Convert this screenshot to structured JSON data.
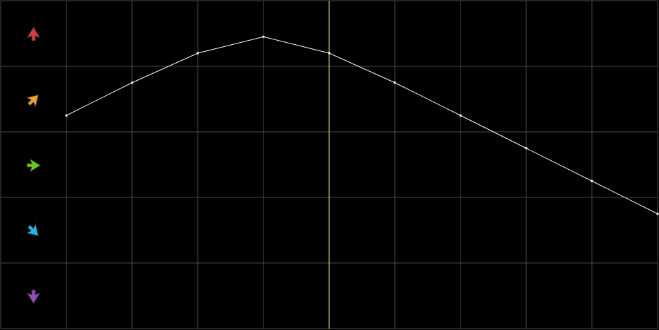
{
  "chart_data": {
    "type": "line",
    "title": "",
    "xlabel": "",
    "ylabel": "",
    "x": [
      1,
      2,
      3,
      4,
      5,
      6,
      7,
      8,
      9,
      10
    ],
    "series": [
      {
        "values": [
          3.25,
          3.75,
          4.2,
          4.45,
          4.2,
          3.75,
          3.25,
          2.75,
          2.25,
          1.75
        ],
        "color": "#ffffff"
      }
    ],
    "xlim": [
      0,
      10
    ],
    "ylim": [
      0,
      5
    ],
    "grid": true,
    "grid_color": "#4a4a4a",
    "background": "#000000",
    "marker_x": 5,
    "marker_color": "#e8e87a",
    "row_icons": [
      {
        "icon": "arrow-up-icon",
        "color": "#e0394a",
        "angle": 0
      },
      {
        "icon": "arrow-up-right-icon",
        "color": "#f0a030",
        "angle": 45
      },
      {
        "icon": "arrow-right-icon",
        "color": "#6ccc1a",
        "angle": 90
      },
      {
        "icon": "arrow-down-right-icon",
        "color": "#20b8e8",
        "angle": 135
      },
      {
        "icon": "arrow-down-icon",
        "color": "#9a4ac0",
        "angle": 180
      }
    ]
  }
}
